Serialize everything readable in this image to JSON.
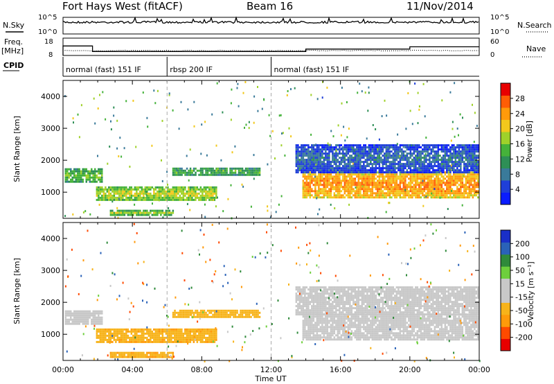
{
  "header": {
    "station": "Fort Hays West (fitACF)",
    "beam": "Beam 16",
    "date": "11/Nov/2014"
  },
  "status_panels": {
    "nsky_label": "N.Sky",
    "nsearch_label": "N.Search",
    "count_ticks": [
      "10^5",
      "10^0"
    ],
    "count_ticks_right": [
      "10^5",
      "10^0"
    ],
    "freq_label": "Freq.",
    "freq_unit": "[MHz]",
    "freq_ticks": [
      "18",
      "8"
    ],
    "nave_label": "Nave",
    "nave_ticks": [
      "60",
      "0"
    ],
    "cpid_label": "CPID",
    "cpid_segments": [
      {
        "label": "normal (fast) 151 IF",
        "start_hour": 0,
        "end_hour": 6
      },
      {
        "label": "rbsp 200 IF",
        "start_hour": 6,
        "end_hour": 12
      },
      {
        "label": "normal (fast) 151 IF",
        "start_hour": 12,
        "end_hour": 24
      }
    ],
    "freq_steps_mhz": [
      {
        "from_hour": 0,
        "to_hour": 1.7,
        "value": 13.5
      },
      {
        "from_hour": 1.7,
        "to_hour": 14,
        "value": 10.3
      },
      {
        "from_hour": 14,
        "to_hour": 20,
        "value": 11.7
      },
      {
        "from_hour": 20,
        "to_hour": 24,
        "value": 13
      }
    ]
  },
  "chart_data": [
    {
      "type": "heatmap",
      "title": "",
      "xlabel": "",
      "ylabel": "Slant Range [km]",
      "colorbar_label": "Power [dB]",
      "colorbar_ticks": [
        "28",
        "24",
        "20",
        "16",
        "12",
        "8",
        "4"
      ],
      "xlim_hours": [
        0,
        24
      ],
      "ylim_km": [
        180,
        4500
      ],
      "y_ticks": [
        "4000",
        "3000",
        "2000",
        "1000"
      ],
      "colors": [
        "#0a1cff",
        "#1f3fd8",
        "#3a7a9a",
        "#2e8f56",
        "#45b23a",
        "#9fd12a",
        "#f2c81c",
        "#ff9a0a",
        "#ff5d05",
        "#e80000"
      ],
      "echo_bands": [
        {
          "t0": 0.1,
          "t1": 2.2,
          "r0": 1350,
          "r1": 1750,
          "p": 16
        },
        {
          "t0": 1.9,
          "t1": 8.8,
          "r0": 780,
          "r1": 1180,
          "p": 19
        },
        {
          "t0": 6.3,
          "t1": 11.3,
          "r0": 1560,
          "r1": 1770,
          "p": 15
        },
        {
          "t0": 2.7,
          "t1": 6.3,
          "r0": 260,
          "r1": 450,
          "p": 17
        },
        {
          "t0": 13.8,
          "t1": 23.9,
          "r0": 850,
          "r1": 1650,
          "p": 25
        },
        {
          "t0": 13.4,
          "t1": 23.9,
          "r0": 1650,
          "r1": 2500,
          "p": 8
        }
      ]
    },
    {
      "type": "heatmap",
      "title": "",
      "xlabel": "Time UT",
      "ylabel": "Slant Range [km]",
      "colorbar_label": "Velocity [m s⁻¹]",
      "colorbar_ticks": [
        "200",
        "100",
        "50",
        "15",
        "-15",
        "-50",
        "-100",
        "-200"
      ],
      "xlim_hours": [
        0,
        24
      ],
      "ylim_km": [
        180,
        4500
      ],
      "x_ticks": [
        "00:00",
        "04:00",
        "08:00",
        "12:00",
        "16:00",
        "20:00",
        "00:00"
      ],
      "y_ticks": [
        "4000",
        "3000",
        "2000",
        "1000"
      ],
      "colors": [
        "#e80000",
        "#ff4a00",
        "#ff9a0a",
        "#f7b31a",
        "#c8c8c8",
        "#c8c8c8",
        "#6ecf3c",
        "#2f8a3a",
        "#2a62b8",
        "#1a2fc8"
      ],
      "echo_bands": [
        {
          "t0": 0.1,
          "t1": 2.2,
          "r0": 1350,
          "r1": 1750,
          "v": 0
        },
        {
          "t0": 1.9,
          "t1": 8.8,
          "r0": 780,
          "r1": 1180,
          "v": -45
        },
        {
          "t0": 6.3,
          "t1": 11.3,
          "r0": 1560,
          "r1": 1770,
          "v": -40
        },
        {
          "t0": 2.7,
          "t1": 6.3,
          "r0": 260,
          "r1": 450,
          "v": -45
        },
        {
          "t0": 13.8,
          "t1": 23.9,
          "r0": 850,
          "r1": 1650,
          "v": 0
        },
        {
          "t0": 13.4,
          "t1": 23.9,
          "r0": 1650,
          "r1": 2500,
          "v": 0
        }
      ]
    }
  ]
}
